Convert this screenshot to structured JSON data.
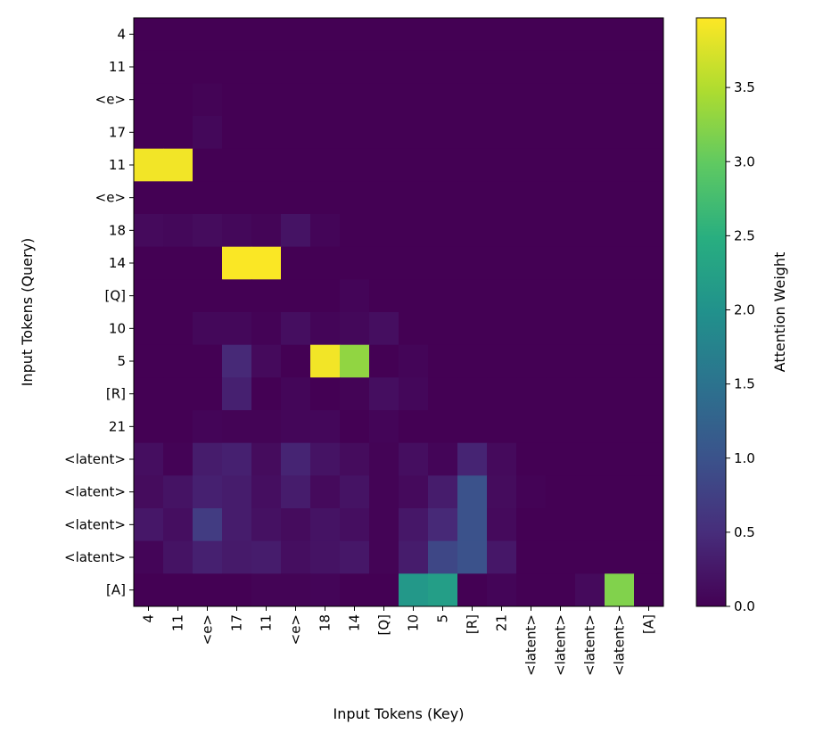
{
  "chart_data": {
    "type": "heatmap",
    "xlabel": "Input Tokens (Key)",
    "ylabel": "Input Tokens (Query)",
    "colorbar_label": "Attention Weight",
    "colormap": "viridis",
    "vmin": 0.0,
    "vmax": 3.97,
    "x_categories": [
      "4",
      "11",
      "<e>",
      "17",
      "11",
      "<e>",
      "18",
      "14",
      "[Q]",
      "10",
      "5",
      "[R]",
      "21",
      "<latent>",
      "<latent>",
      "<latent>",
      "<latent>",
      "[A]"
    ],
    "y_categories": [
      "4",
      "11",
      "<e>",
      "17",
      "11",
      "<e>",
      "18",
      "14",
      "[Q]",
      "10",
      "5",
      "[R]",
      "21",
      "<latent>",
      "<latent>",
      "<latent>",
      "<latent>",
      "[A]"
    ],
    "colorbar_ticks": [
      "0.0",
      "0.5",
      "1.0",
      "1.5",
      "2.0",
      "2.5",
      "3.0",
      "3.5"
    ],
    "values": [
      [
        0,
        0,
        0,
        0,
        0,
        0,
        0,
        0,
        0,
        0,
        0,
        0,
        0,
        0,
        0,
        0,
        0,
        0
      ],
      [
        0,
        0,
        0,
        0,
        0,
        0,
        0,
        0,
        0,
        0,
        0,
        0,
        0,
        0,
        0,
        0,
        0,
        0
      ],
      [
        0,
        0,
        0.03,
        0,
        0,
        0,
        0,
        0,
        0,
        0,
        0,
        0,
        0,
        0,
        0,
        0,
        0,
        0
      ],
      [
        0,
        0,
        0.08,
        0,
        0,
        0,
        0,
        0,
        0,
        0,
        0,
        0,
        0,
        0,
        0,
        0,
        0,
        0
      ],
      [
        3.9,
        3.9,
        0,
        0,
        0,
        0,
        0,
        0,
        0,
        0,
        0,
        0,
        0,
        0,
        0,
        0,
        0,
        0
      ],
      [
        0,
        0,
        0,
        0,
        0,
        0,
        0,
        0,
        0,
        0,
        0,
        0,
        0,
        0,
        0,
        0,
        0,
        0
      ],
      [
        0.1,
        0.08,
        0.12,
        0.08,
        0.04,
        0.2,
        0.05,
        0,
        0,
        0,
        0,
        0,
        0,
        0,
        0,
        0,
        0,
        0
      ],
      [
        0,
        0,
        0,
        3.95,
        3.95,
        0,
        0,
        0,
        0,
        0,
        0,
        0,
        0,
        0,
        0,
        0,
        0,
        0
      ],
      [
        0,
        0,
        0,
        0,
        0,
        0,
        0,
        0.05,
        0,
        0,
        0,
        0,
        0,
        0,
        0,
        0,
        0,
        0
      ],
      [
        0,
        0,
        0.08,
        0.08,
        0.02,
        0.15,
        0.05,
        0.08,
        0.15,
        0,
        0,
        0,
        0,
        0,
        0,
        0,
        0,
        0
      ],
      [
        0,
        0,
        0,
        0.45,
        0.1,
        0,
        3.9,
        3.3,
        0,
        0.05,
        0,
        0,
        0,
        0,
        0,
        0,
        0,
        0
      ],
      [
        0,
        0,
        0,
        0.35,
        0,
        0.06,
        0,
        0.03,
        0.15,
        0.07,
        0,
        0,
        0,
        0,
        0,
        0,
        0,
        0
      ],
      [
        0,
        0,
        0.05,
        0.03,
        0.03,
        0.06,
        0.07,
        0,
        0.05,
        0,
        0,
        0,
        0,
        0,
        0,
        0,
        0,
        0
      ],
      [
        0.15,
        0.02,
        0.3,
        0.35,
        0.12,
        0.4,
        0.2,
        0.12,
        0.03,
        0.15,
        0.05,
        0.4,
        0.1,
        0,
        0,
        0,
        0,
        0
      ],
      [
        0.12,
        0.2,
        0.35,
        0.3,
        0.15,
        0.3,
        0.1,
        0.2,
        0.03,
        0.1,
        0.3,
        1.0,
        0.12,
        0.02,
        0,
        0,
        0,
        0
      ],
      [
        0.25,
        0.15,
        0.7,
        0.3,
        0.18,
        0.12,
        0.2,
        0.15,
        0.03,
        0.25,
        0.45,
        1.0,
        0.1,
        0,
        0,
        0,
        0,
        0
      ],
      [
        0.05,
        0.2,
        0.35,
        0.28,
        0.3,
        0.15,
        0.2,
        0.25,
        0.03,
        0.3,
        0.85,
        1.0,
        0.25,
        0,
        0,
        0,
        0,
        0
      ],
      [
        0,
        0,
        0,
        0,
        0.03,
        0.03,
        0.05,
        0,
        0,
        2.1,
        2.2,
        0,
        0.05,
        0,
        0,
        0.1,
        3.2,
        0
      ]
    ]
  }
}
